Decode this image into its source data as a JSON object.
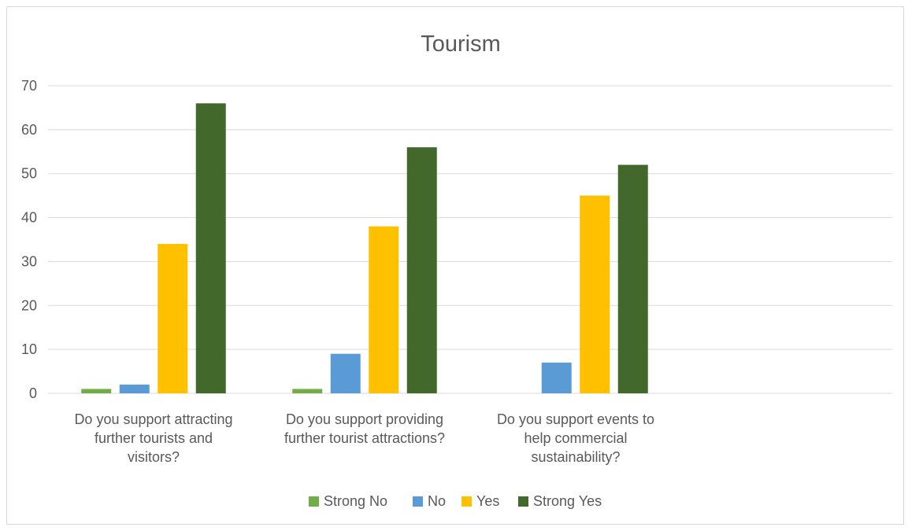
{
  "chart_data": {
    "type": "bar",
    "title": "Tourism",
    "xlabel": "",
    "ylabel": "",
    "categories": [
      [
        "Do you support attracting",
        "further tourists and",
        "visitors?"
      ],
      [
        "Do you support providing",
        "further tourist attractions?"
      ],
      [
        "Do you support events to",
        "help commercial",
        "sustainability?"
      ],
      []
    ],
    "series": [
      {
        "name": "Strong No",
        "color": "#70ad47",
        "values": [
          1,
          1,
          null,
          null
        ]
      },
      {
        "name": "No",
        "color": "#5b9bd5",
        "values": [
          2,
          9,
          7,
          null
        ]
      },
      {
        "name": "Yes",
        "color": "#ffc000",
        "values": [
          34,
          38,
          45,
          null
        ]
      },
      {
        "name": "Strong Yes",
        "color": "#43682b",
        "values": [
          66,
          56,
          52,
          null
        ]
      }
    ],
    "ylim": [
      0,
      70
    ],
    "yticks": [
      0,
      10,
      20,
      30,
      40,
      50,
      60,
      70
    ],
    "grid": true,
    "legend_position": "bottom",
    "gridline_color": "#d9d9d9"
  }
}
